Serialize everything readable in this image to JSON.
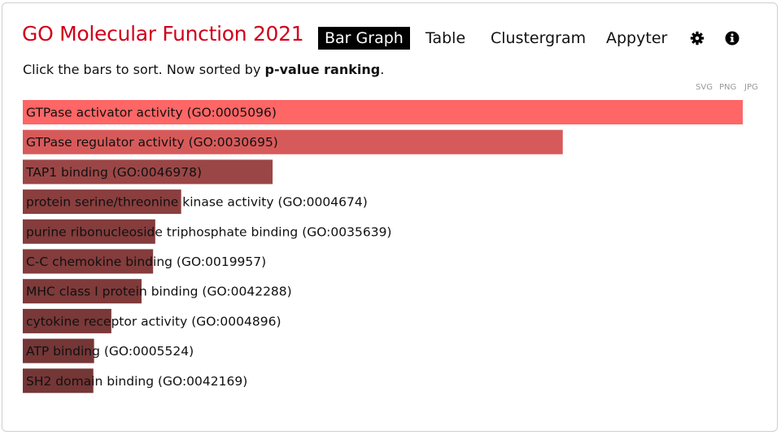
{
  "header": {
    "title": "GO Molecular Function 2021",
    "tabs": [
      {
        "label": "Bar Graph",
        "active": true
      },
      {
        "label": "Table",
        "active": false
      },
      {
        "label": "Clustergram",
        "active": false
      },
      {
        "label": "Appyter",
        "active": false
      }
    ],
    "icons": [
      "gear-icon",
      "info-icon"
    ]
  },
  "instructions": {
    "prefix": "Click the bars to sort. Now sorted by ",
    "sort_key": "p-value ranking",
    "suffix": "."
  },
  "export": {
    "svg": "SVG",
    "png": "PNG",
    "jpg": "JPG"
  },
  "colors": {
    "title": "#d0021b",
    "bars": [
      "#ff6666",
      "#d75a5a",
      "#9b4646",
      "#8a3e3e",
      "#843c3c",
      "#843c3c",
      "#7f3a3a",
      "#7a3838",
      "#753636",
      "#753636"
    ]
  },
  "chart_data": {
    "type": "bar",
    "orientation": "horizontal",
    "categories": [
      "GTPase activator activity (GO:0005096)",
      "GTPase regulator activity (GO:0030695)",
      "TAP1 binding (GO:0046978)",
      "protein serine/threonine kinase activity (GO:0004674)",
      "purine ribonucleoside triphosphate binding (GO:0035639)",
      "C-C chemokine binding (GO:0019957)",
      "MHC class I protein binding (GO:0042288)",
      "cytokine receptor activity (GO:0004896)",
      "ATP binding (GO:0005524)",
      "SH2 domain binding (GO:0042169)"
    ],
    "values": [
      1.0,
      0.75,
      0.347,
      0.22,
      0.184,
      0.181,
      0.165,
      0.123,
      0.099,
      0.098
    ],
    "title": "",
    "xlabel": "",
    "ylabel": "",
    "xlim": [
      0,
      1.0
    ],
    "sorted_by": "p-value ranking",
    "grid": false,
    "legend": "none"
  }
}
